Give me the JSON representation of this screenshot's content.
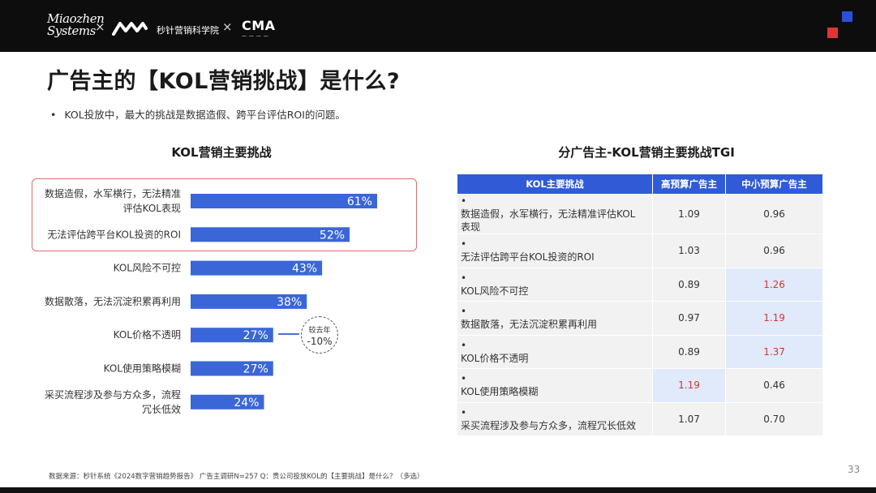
{
  "header": {
    "brand_primary": "Miaozhen",
    "brand_secondary": "Systems",
    "separator": "×",
    "institute_name": "秒针营销科学院",
    "partner_logo": "CMA",
    "accent_colors": {
      "blue": "#2b50d6",
      "red": "#e03535"
    }
  },
  "title": "广告主的【KOL营销挑战】是什么?",
  "bullet": "KOL投放中，最大的挑战是数据造假、跨平台评估ROI的问题。",
  "chart_data": {
    "type": "bar",
    "orientation": "horizontal",
    "title": "KOL营销主要挑战",
    "categories": [
      "数据造假，水军横行，无法精准评估KOL表现",
      "无法评估跨平台KOL投资的ROI",
      "KOL风险不可控",
      "数据散落，无法沉淀积累再利用",
      "KOL价格不透明",
      "KOL使用策略模糊",
      "采买流程涉及参与方众多，流程冗长低效"
    ],
    "category_lines": [
      [
        "数据造假，水军横行，无法精准",
        "评估KOL表现"
      ],
      [
        "无法评估跨平台KOL投资的ROI"
      ],
      [
        "KOL风险不可控"
      ],
      [
        "数据散落，无法沉淀积累再利用"
      ],
      [
        "KOL价格不透明"
      ],
      [
        "KOL使用策略模糊"
      ],
      [
        "采买流程涉及参与方众多，流程",
        "冗长低效"
      ]
    ],
    "values": [
      61,
      52,
      43,
      38,
      27,
      27,
      24
    ],
    "value_labels": [
      "61%",
      "52%",
      "43%",
      "38%",
      "27%",
      "27%",
      "24%"
    ],
    "xlim": [
      0,
      100
    ],
    "bar_color": "#3a66d8",
    "highlight_color": "#e26b6b",
    "annotation": {
      "line1": "较去年",
      "line2": "-10%"
    }
  },
  "table": {
    "title": "分广告主-KOL营销主要挑战TGI",
    "headers": [
      "KOL主要挑战",
      "高预算广告主",
      "中小预算广告主"
    ],
    "rows": [
      {
        "challenge": "数据造假，水军横行，无法精准评估KOL表现",
        "high": "1.09",
        "small": "0.96",
        "hl": ""
      },
      {
        "challenge": "无法评估跨平台KOL投资的ROI",
        "high": "1.03",
        "small": "0.96",
        "hl": ""
      },
      {
        "challenge": "KOL风险不可控",
        "high": "0.89",
        "small": "1.26",
        "hl": "small"
      },
      {
        "challenge": "数据散落，无法沉淀积累再利用",
        "high": "0.97",
        "small": "1.19",
        "hl": "small"
      },
      {
        "challenge": "KOL价格不透明",
        "high": "0.89",
        "small": "1.37",
        "hl": "small"
      },
      {
        "challenge": "KOL使用策略模糊",
        "high": "1.19",
        "small": "0.46",
        "hl": "high"
      },
      {
        "challenge": "采买流程涉及参与方众多，流程冗长低效",
        "high": "1.07",
        "small": "0.70",
        "hl": ""
      }
    ],
    "header_color": "#2f5bd7",
    "highlight_text_color": "#d73535"
  },
  "footer": "数据来源：秒针系统《2024数字营销趋势报告》 广告主调研N=257 Q：贵公司投放KOL的【主要挑战】是什么？（多选）",
  "page_number": "33"
}
